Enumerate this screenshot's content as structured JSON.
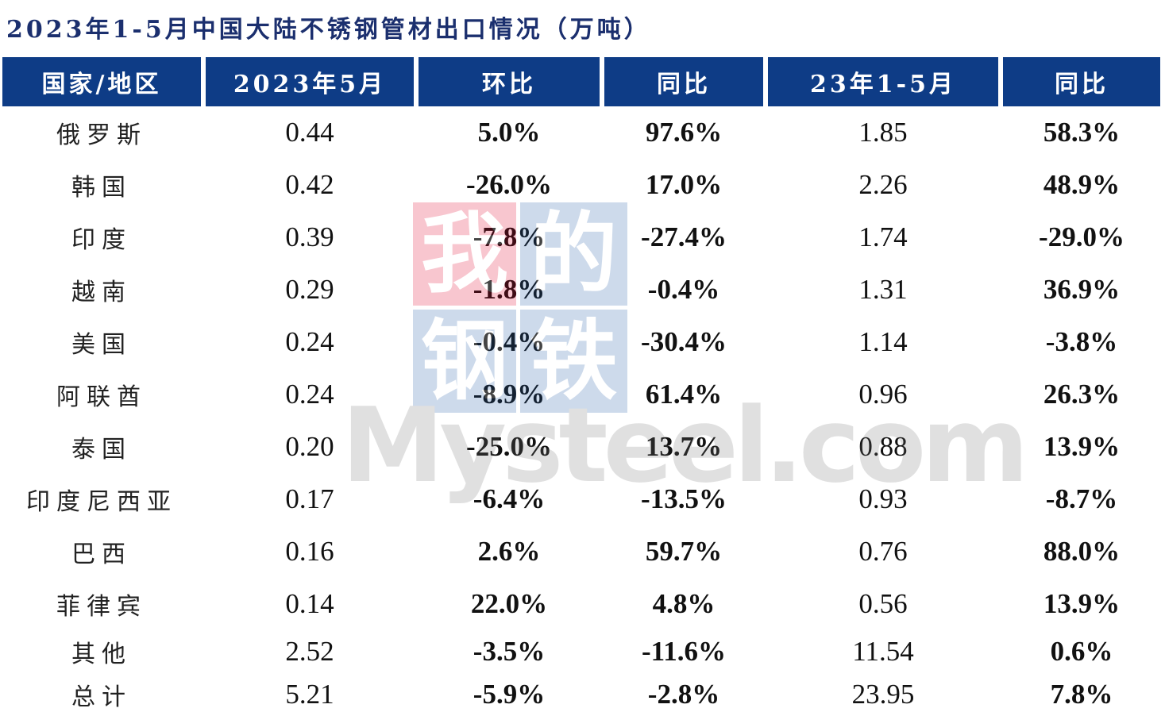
{
  "title": "2023年1-5月中国大陆不锈钢管材出口情况（万吨）",
  "watermark": {
    "chars": [
      "我",
      "的",
      "钢",
      "铁"
    ],
    "latin": "Mysteel.com",
    "colors": [
      "#e4002b",
      "#1f5aa6",
      "#1f5aa6",
      "#1f5aa6"
    ]
  },
  "colors": {
    "header_bg": "#0e3c86",
    "positive": "#e3191c",
    "negative": "#2eaa3c"
  },
  "chart_data": {
    "type": "table",
    "columns": [
      "国家/地区",
      "2023年5月",
      "环比",
      "同比",
      "23年1-5月",
      "同比"
    ],
    "rows": [
      {
        "region": "俄罗斯",
        "may_2023": "0.44",
        "mom": "5.0%",
        "yoy_may": "97.6%",
        "jan_may_2023": "1.85",
        "yoy_ytd": "58.3%"
      },
      {
        "region": "韩国",
        "may_2023": "0.42",
        "mom": "-26.0%",
        "yoy_may": "17.0%",
        "jan_may_2023": "2.26",
        "yoy_ytd": "48.9%"
      },
      {
        "region": "印度",
        "may_2023": "0.39",
        "mom": "-7.8%",
        "yoy_may": "-27.4%",
        "jan_may_2023": "1.74",
        "yoy_ytd": "-29.0%"
      },
      {
        "region": "越南",
        "may_2023": "0.29",
        "mom": "-1.8%",
        "yoy_may": "-0.4%",
        "jan_may_2023": "1.31",
        "yoy_ytd": "36.9%"
      },
      {
        "region": "美国",
        "may_2023": "0.24",
        "mom": "-0.4%",
        "yoy_may": "-30.4%",
        "jan_may_2023": "1.14",
        "yoy_ytd": "-3.8%"
      },
      {
        "region": "阿联酋",
        "may_2023": "0.24",
        "mom": "-8.9%",
        "yoy_may": "61.4%",
        "jan_may_2023": "0.96",
        "yoy_ytd": "26.3%"
      },
      {
        "region": "泰国",
        "may_2023": "0.20",
        "mom": "-25.0%",
        "yoy_may": "13.7%",
        "jan_may_2023": "0.88",
        "yoy_ytd": "13.9%"
      },
      {
        "region": "印度尼西亚",
        "may_2023": "0.17",
        "mom": "-6.4%",
        "yoy_may": "-13.5%",
        "jan_may_2023": "0.93",
        "yoy_ytd": "-8.7%"
      },
      {
        "region": "巴西",
        "may_2023": "0.16",
        "mom": "2.6%",
        "yoy_may": "59.7%",
        "jan_may_2023": "0.76",
        "yoy_ytd": "88.0%"
      },
      {
        "region": "菲律宾",
        "may_2023": "0.14",
        "mom": "22.0%",
        "yoy_may": "4.8%",
        "jan_may_2023": "0.56",
        "yoy_ytd": "13.9%"
      },
      {
        "region": "其他",
        "may_2023": "2.52",
        "mom": "-3.5%",
        "yoy_may": "-11.6%",
        "jan_may_2023": "11.54",
        "yoy_ytd": "0.6%"
      },
      {
        "region": "总计",
        "may_2023": "5.21",
        "mom": "-5.9%",
        "yoy_may": "-2.8%",
        "jan_may_2023": "23.95",
        "yoy_ytd": "7.8%"
      }
    ]
  }
}
